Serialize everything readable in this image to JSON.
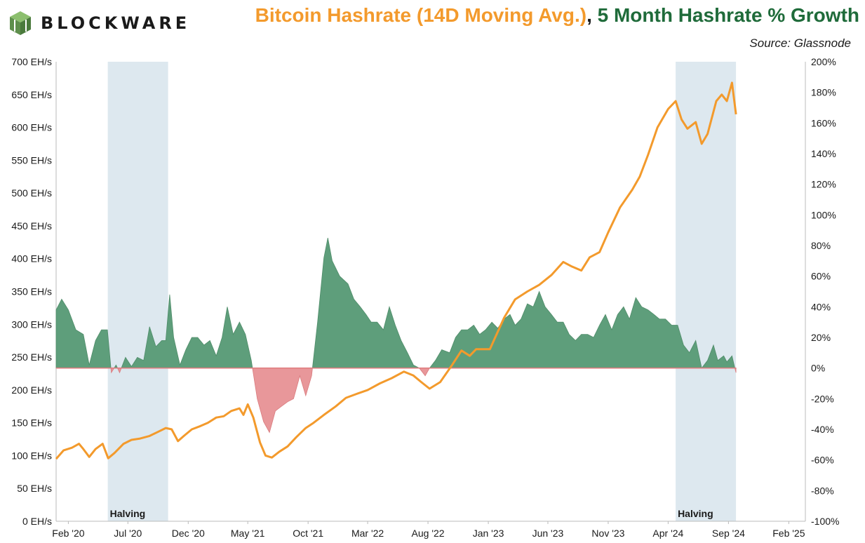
{
  "header": {
    "brand": "BLOCKWARE",
    "title_part1": "Bitcoin Hashrate (14D Moving Avg.)",
    "title_sep": ", ",
    "title_part2": "5 Month Hashrate % Growth",
    "source": "Source: Glassnode"
  },
  "colors": {
    "hashrate": "#f39a2c",
    "growth_positive": "#5e9e7b",
    "growth_negative": "#e8979a",
    "halving_band": "#dde8ef",
    "title_orange": "#f39a2c",
    "title_green": "#1f6b3a",
    "logo": "#6f9f5b"
  },
  "chart_data": {
    "type": "line+area",
    "x_axis": {
      "start": "2020-01-01",
      "end": "2025-03-15",
      "tick_dates": [
        "2020-02-01",
        "2020-07-01",
        "2020-12-01",
        "2021-05-01",
        "2021-10-01",
        "2022-03-01",
        "2022-08-01",
        "2023-01-01",
        "2023-06-01",
        "2023-11-01",
        "2024-04-01",
        "2024-09-01",
        "2025-02-01"
      ],
      "tick_labels": [
        "Feb '20",
        "Jul '20",
        "Dec '20",
        "May '21",
        "Oct '21",
        "Mar '22",
        "Aug '22",
        "Jan '23",
        "Jun '23",
        "Nov '23",
        "Apr '24",
        "Sep '24",
        "Feb '25"
      ]
    },
    "y_left": {
      "min": 0,
      "max": 700,
      "ticks": [
        0,
        50,
        100,
        150,
        200,
        250,
        300,
        350,
        400,
        450,
        500,
        550,
        600,
        650,
        700
      ],
      "tick_labels": [
        "0 EH/s",
        "50 EH/s",
        "100 EH/s",
        "150 EH/s",
        "200 EH/s",
        "250 EH/s",
        "300 EH/s",
        "350 EH/s",
        "400 EH/s",
        "450 EH/s",
        "500 EH/s",
        "550 EH/s",
        "600 EH/s",
        "650 EH/s",
        "700 EH/s"
      ]
    },
    "y_right": {
      "min": -100,
      "max": 200,
      "ticks": [
        -100,
        -80,
        -60,
        -40,
        -20,
        0,
        20,
        40,
        60,
        80,
        100,
        120,
        140,
        160,
        180,
        200
      ],
      "tick_labels": [
        "-100%",
        "-80%",
        "-60%",
        "-40%",
        "-20%",
        "0%",
        "20%",
        "40%",
        "60%",
        "80%",
        "100%",
        "120%",
        "140%",
        "160%",
        "180%",
        "200%"
      ]
    },
    "halvings": [
      {
        "start": "2020-05-11",
        "end": "2020-10-11",
        "label": "Halving"
      },
      {
        "start": "2024-04-20",
        "end": "2024-09-20",
        "label": "Halving"
      }
    ],
    "series": [
      {
        "name": "Bitcoin Hashrate (14D Moving Avg.)",
        "axis": "left",
        "style": "line",
        "points": [
          [
            "2020-01-01",
            95
          ],
          [
            "2020-01-20",
            108
          ],
          [
            "2020-02-10",
            112
          ],
          [
            "2020-02-28",
            118
          ],
          [
            "2020-03-10",
            110
          ],
          [
            "2020-03-25",
            98
          ],
          [
            "2020-04-10",
            110
          ],
          [
            "2020-04-28",
            118
          ],
          [
            "2020-05-12",
            96
          ],
          [
            "2020-05-28",
            104
          ],
          [
            "2020-06-20",
            118
          ],
          [
            "2020-07-10",
            124
          ],
          [
            "2020-08-01",
            126
          ],
          [
            "2020-08-25",
            130
          ],
          [
            "2020-09-15",
            136
          ],
          [
            "2020-10-05",
            142
          ],
          [
            "2020-10-20",
            140
          ],
          [
            "2020-11-05",
            122
          ],
          [
            "2020-11-20",
            130
          ],
          [
            "2020-12-10",
            140
          ],
          [
            "2021-01-01",
            145
          ],
          [
            "2021-01-20",
            150
          ],
          [
            "2021-02-10",
            158
          ],
          [
            "2021-03-01",
            160
          ],
          [
            "2021-03-20",
            168
          ],
          [
            "2021-04-10",
            172
          ],
          [
            "2021-04-20",
            162
          ],
          [
            "2021-05-01",
            178
          ],
          [
            "2021-05-15",
            158
          ],
          [
            "2021-06-01",
            120
          ],
          [
            "2021-06-15",
            100
          ],
          [
            "2021-07-01",
            97
          ],
          [
            "2021-07-20",
            106
          ],
          [
            "2021-08-10",
            114
          ],
          [
            "2021-09-01",
            128
          ],
          [
            "2021-09-25",
            142
          ],
          [
            "2021-10-15",
            150
          ],
          [
            "2021-11-10",
            162
          ],
          [
            "2021-12-10",
            175
          ],
          [
            "2022-01-05",
            188
          ],
          [
            "2022-02-01",
            194
          ],
          [
            "2022-03-01",
            200
          ],
          [
            "2022-04-01",
            210
          ],
          [
            "2022-05-01",
            218
          ],
          [
            "2022-06-01",
            228
          ],
          [
            "2022-06-25",
            222
          ],
          [
            "2022-07-15",
            212
          ],
          [
            "2022-08-05",
            202
          ],
          [
            "2022-09-01",
            212
          ],
          [
            "2022-10-01",
            238
          ],
          [
            "2022-10-25",
            260
          ],
          [
            "2022-11-15",
            252
          ],
          [
            "2022-12-01",
            262
          ],
          [
            "2022-12-20",
            262
          ],
          [
            "2023-01-05",
            262
          ],
          [
            "2023-01-20",
            282
          ],
          [
            "2023-02-10",
            310
          ],
          [
            "2023-03-10",
            338
          ],
          [
            "2023-04-10",
            350
          ],
          [
            "2023-05-10",
            360
          ],
          [
            "2023-06-10",
            375
          ],
          [
            "2023-07-10",
            395
          ],
          [
            "2023-08-01",
            388
          ],
          [
            "2023-08-25",
            382
          ],
          [
            "2023-09-15",
            402
          ],
          [
            "2023-10-10",
            410
          ],
          [
            "2023-11-01",
            440
          ],
          [
            "2023-12-01",
            478
          ],
          [
            "2024-01-01",
            505
          ],
          [
            "2024-01-20",
            525
          ],
          [
            "2024-02-10",
            558
          ],
          [
            "2024-03-05",
            600
          ],
          [
            "2024-04-01",
            628
          ],
          [
            "2024-04-20",
            640
          ],
          [
            "2024-05-05",
            612
          ],
          [
            "2024-05-20",
            598
          ],
          [
            "2024-06-10",
            608
          ],
          [
            "2024-06-25",
            575
          ],
          [
            "2024-07-10",
            590
          ],
          [
            "2024-08-01",
            640
          ],
          [
            "2024-08-15",
            650
          ],
          [
            "2024-08-28",
            640
          ],
          [
            "2024-09-10",
            668
          ],
          [
            "2024-09-20",
            620
          ]
        ]
      },
      {
        "name": "5 Month Hashrate % Growth",
        "axis": "right",
        "style": "area",
        "points": [
          [
            "2020-01-01",
            38
          ],
          [
            "2020-01-15",
            45
          ],
          [
            "2020-02-01",
            38
          ],
          [
            "2020-02-20",
            25
          ],
          [
            "2020-03-10",
            22
          ],
          [
            "2020-03-25",
            2
          ],
          [
            "2020-04-10",
            18
          ],
          [
            "2020-04-25",
            25
          ],
          [
            "2020-05-10",
            25
          ],
          [
            "2020-05-20",
            -3
          ],
          [
            "2020-06-01",
            2
          ],
          [
            "2020-06-10",
            -3
          ],
          [
            "2020-06-25",
            7
          ],
          [
            "2020-07-10",
            1
          ],
          [
            "2020-07-25",
            7
          ],
          [
            "2020-08-10",
            5
          ],
          [
            "2020-08-25",
            27
          ],
          [
            "2020-09-10",
            14
          ],
          [
            "2020-09-25",
            18
          ],
          [
            "2020-10-05",
            18
          ],
          [
            "2020-10-15",
            48
          ],
          [
            "2020-10-25",
            20
          ],
          [
            "2020-11-10",
            2
          ],
          [
            "2020-11-25",
            12
          ],
          [
            "2020-12-10",
            20
          ],
          [
            "2020-12-25",
            20
          ],
          [
            "2021-01-10",
            15
          ],
          [
            "2021-01-25",
            18
          ],
          [
            "2021-02-10",
            8
          ],
          [
            "2021-02-25",
            20
          ],
          [
            "2021-03-10",
            40
          ],
          [
            "2021-03-25",
            22
          ],
          [
            "2021-04-10",
            30
          ],
          [
            "2021-04-25",
            22
          ],
          [
            "2021-05-10",
            5
          ],
          [
            "2021-05-25",
            -20
          ],
          [
            "2021-06-10",
            -35
          ],
          [
            "2021-06-25",
            -42
          ],
          [
            "2021-07-10",
            -28
          ],
          [
            "2021-07-25",
            -25
          ],
          [
            "2021-08-10",
            -22
          ],
          [
            "2021-08-25",
            -20
          ],
          [
            "2021-09-10",
            -5
          ],
          [
            "2021-09-25",
            -18
          ],
          [
            "2021-10-10",
            -5
          ],
          [
            "2021-10-25",
            30
          ],
          [
            "2021-11-10",
            72
          ],
          [
            "2021-11-20",
            85
          ],
          [
            "2021-12-01",
            70
          ],
          [
            "2021-12-20",
            60
          ],
          [
            "2022-01-10",
            55
          ],
          [
            "2022-01-25",
            45
          ],
          [
            "2022-02-10",
            40
          ],
          [
            "2022-02-25",
            35
          ],
          [
            "2022-03-10",
            30
          ],
          [
            "2022-03-25",
            30
          ],
          [
            "2022-04-10",
            25
          ],
          [
            "2022-04-25",
            40
          ],
          [
            "2022-05-10",
            28
          ],
          [
            "2022-05-25",
            18
          ],
          [
            "2022-06-10",
            10
          ],
          [
            "2022-06-25",
            2
          ],
          [
            "2022-07-10",
            0
          ],
          [
            "2022-07-25",
            -5
          ],
          [
            "2022-08-05",
            0
          ],
          [
            "2022-08-20",
            5
          ],
          [
            "2022-09-05",
            12
          ],
          [
            "2022-09-25",
            10
          ],
          [
            "2022-10-10",
            20
          ],
          [
            "2022-10-25",
            25
          ],
          [
            "2022-11-10",
            25
          ],
          [
            "2022-11-25",
            28
          ],
          [
            "2022-12-10",
            22
          ],
          [
            "2022-12-25",
            25
          ],
          [
            "2023-01-10",
            30
          ],
          [
            "2023-01-25",
            26
          ],
          [
            "2023-02-10",
            32
          ],
          [
            "2023-02-25",
            35
          ],
          [
            "2023-03-10",
            28
          ],
          [
            "2023-03-25",
            32
          ],
          [
            "2023-04-10",
            42
          ],
          [
            "2023-04-25",
            40
          ],
          [
            "2023-05-10",
            50
          ],
          [
            "2023-05-25",
            40
          ],
          [
            "2023-06-10",
            35
          ],
          [
            "2023-06-25",
            30
          ],
          [
            "2023-07-10",
            30
          ],
          [
            "2023-07-25",
            22
          ],
          [
            "2023-08-10",
            18
          ],
          [
            "2023-08-25",
            22
          ],
          [
            "2023-09-10",
            22
          ],
          [
            "2023-09-25",
            20
          ],
          [
            "2023-10-10",
            28
          ],
          [
            "2023-10-25",
            35
          ],
          [
            "2023-11-10",
            25
          ],
          [
            "2023-11-25",
            35
          ],
          [
            "2023-12-10",
            40
          ],
          [
            "2023-12-25",
            32
          ],
          [
            "2024-01-10",
            46
          ],
          [
            "2024-01-25",
            40
          ],
          [
            "2024-02-10",
            38
          ],
          [
            "2024-02-25",
            35
          ],
          [
            "2024-03-10",
            32
          ],
          [
            "2024-03-25",
            32
          ],
          [
            "2024-04-10",
            28
          ],
          [
            "2024-04-25",
            28
          ],
          [
            "2024-05-10",
            15
          ],
          [
            "2024-05-25",
            10
          ],
          [
            "2024-06-10",
            18
          ],
          [
            "2024-06-25",
            0
          ],
          [
            "2024-07-10",
            5
          ],
          [
            "2024-07-25",
            15
          ],
          [
            "2024-08-05",
            5
          ],
          [
            "2024-08-20",
            8
          ],
          [
            "2024-08-28",
            4
          ],
          [
            "2024-09-10",
            8
          ],
          [
            "2024-09-20",
            -3
          ]
        ]
      }
    ]
  }
}
